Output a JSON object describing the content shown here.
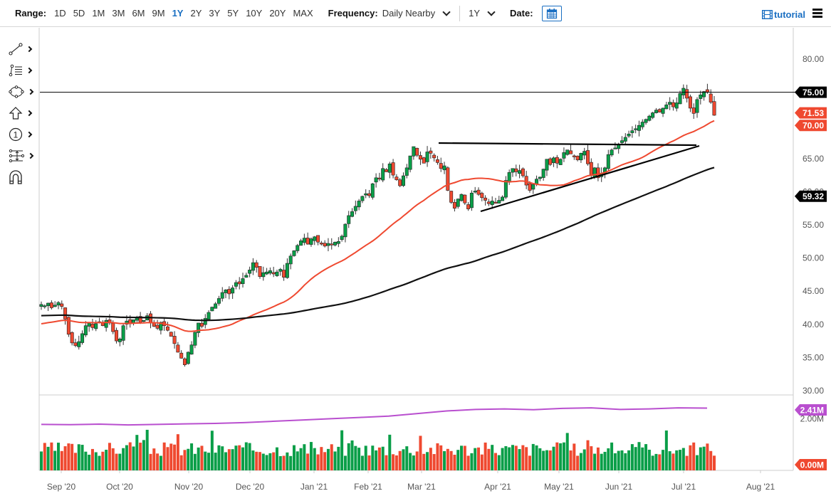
{
  "toolbar": {
    "range_label": "Range:",
    "ranges": [
      "1D",
      "5D",
      "1M",
      "3M",
      "6M",
      "9M",
      "1Y",
      "2Y",
      "3Y",
      "5Y",
      "10Y",
      "20Y",
      "MAX"
    ],
    "active_range": "1Y",
    "frequency_label": "Frequency:",
    "frequency_value": "Daily Nearby",
    "period_value": "1Y",
    "date_label": "Date:",
    "tutorial_label": "tutorial",
    "icons": {
      "calendar": "calendar-icon",
      "film": "film-icon",
      "menu": "hamburger-menu-icon"
    }
  },
  "drawing_tools": [
    {
      "name": "trendline-tool",
      "icon": "trendline-icon",
      "has_submenu": true
    },
    {
      "name": "fibonacci-tool",
      "icon": "fibonacci-icon",
      "has_submenu": true
    },
    {
      "name": "shapes-tool",
      "icon": "ellipse-shape-icon",
      "has_submenu": true
    },
    {
      "name": "arrow-tool",
      "icon": "arrow-up-icon",
      "has_submenu": true
    },
    {
      "name": "annotation-tool",
      "icon": "circled-one-icon",
      "has_submenu": true
    },
    {
      "name": "measure-tool",
      "icon": "measure-icon",
      "has_submenu": true
    },
    {
      "name": "magnet-tool",
      "icon": "magnet-icon",
      "has_submenu": false
    }
  ],
  "colors": {
    "up": "#0a9e48",
    "down": "#ef4930",
    "ma_short": "#ef4930",
    "ma_long": "#111111",
    "volume_ma": "#b94fcf",
    "axis_text": "#555555",
    "grid_border": "#cccccc",
    "accent": "#1a6fc2"
  },
  "chart_data": {
    "type": "candlestick",
    "title": "",
    "xlabel": "",
    "ylabel": "",
    "x_ticks": [
      "Sep '20",
      "Oct '20",
      "Nov '20",
      "Dec '20",
      "Jan '21",
      "Feb '21",
      "Mar '21",
      "Apr '21",
      "May '21",
      "Jun '21",
      "Jul '21",
      "Aug '21"
    ],
    "y_ticks": [
      "80.00",
      "75.00",
      "70.00",
      "65.00",
      "60.00",
      "55.00",
      "50.00",
      "45.00",
      "40.00",
      "35.00",
      "30.00"
    ],
    "ylim": [
      30,
      82
    ],
    "price_labels": [
      {
        "value": "75.00",
        "type": "horizontal-line",
        "color": "#000000"
      },
      {
        "value": "71.53",
        "type": "last-price",
        "color": "#ef4930"
      },
      {
        "value": "70.00",
        "type": "moving-average-50",
        "color": "#ef4930"
      },
      {
        "value": "59.32",
        "type": "moving-average-200",
        "color": "#000000"
      }
    ],
    "horizontal_line": 75.0,
    "annotations": [
      {
        "type": "resistance-line",
        "from": [
          "Mar '21",
          67.2
        ],
        "to": [
          "Jul '21",
          66.9
        ]
      },
      {
        "type": "rising-trendline",
        "from": [
          "Mar '21 late",
          56.9
        ],
        "to": [
          "Jul '21",
          66.6
        ]
      }
    ],
    "monthly_close_approx": {
      "x": [
        "Sep '20",
        "Oct '20",
        "Nov '20",
        "Dec '20",
        "Jan '21",
        "Feb '21",
        "Mar '21",
        "Apr '21",
        "May '21",
        "Jun '21",
        "Jul '21"
      ],
      "values": [
        40.5,
        40.0,
        35.5,
        44.5,
        52.0,
        59.0,
        66.0,
        58.5,
        64.5,
        71.0,
        71.53
      ]
    },
    "close_series": [
      43,
      42.8,
      43.2,
      42.5,
      42.9,
      43.3,
      42.7,
      40.8,
      38.5,
      37.2,
      36.8,
      37.4,
      38.6,
      39.8,
      40.2,
      39.5,
      40.1,
      40.4,
      39.8,
      40.6,
      40.2,
      38.9,
      37.5,
      37.8,
      39.8,
      40.5,
      40.1,
      40.7,
      41.1,
      40.3,
      40.6,
      41.3,
      40.2,
      39.7,
      39.4,
      40.3,
      39.8,
      39.1,
      38.2,
      37.1,
      35.8,
      34.9,
      33.9,
      35.8,
      36.9,
      38.8,
      40.2,
      39.7,
      40.9,
      41.8,
      42.6,
      43.1,
      43.9,
      44.8,
      45.2,
      44.6,
      45.5,
      46.3,
      46.1,
      46.9,
      47.4,
      48.2,
      49.3,
      48.6,
      47.2,
      47.8,
      47.9,
      48.1,
      47.6,
      47.9,
      48.3,
      47.1,
      49.2,
      50.3,
      51.1,
      51.9,
      52.6,
      53.0,
      52.1,
      52.9,
      53.2,
      52.4,
      52.1,
      51.8,
      52.2,
      52.0,
      52.4,
      52.5,
      53.3,
      55.1,
      56.4,
      57.0,
      57.8,
      58.6,
      59.3,
      59.7,
      59.4,
      61.2,
      62.1,
      62.0,
      63.5,
      63.0,
      64.2,
      62.5,
      61.8,
      60.9,
      62.4,
      63.6,
      65.4,
      66.8,
      65.5,
      64.9,
      64.3,
      66.0,
      65.8,
      65.1,
      64.4,
      63.5,
      63.9,
      60.2,
      58.4,
      57.5,
      58.9,
      59.6,
      58.3,
      57.4,
      59.8,
      60.1,
      59.6,
      59.1,
      58.7,
      58.2,
      58.6,
      58.3,
      58.7,
      59.2,
      61.7,
      62.9,
      63.5,
      63.0,
      63.2,
      62.4,
      61.0,
      60.2,
      61.1,
      61.9,
      62.2,
      63.4,
      64.9,
      64.1,
      65.1,
      64.3,
      64.9,
      65.9,
      66.3,
      65.7,
      65.3,
      64.8,
      65.8,
      66.1,
      64.2,
      62.5,
      63.6,
      62.1,
      62.8,
      63.6,
      65.6,
      66.3,
      66.6,
      67.1,
      67.7,
      68.2,
      68.7,
      69.2,
      69.5,
      70.0,
      70.5,
      70.9,
      71.4,
      71.9,
      72.3,
      72.0,
      72.6,
      73.1,
      73.5,
      72.8,
      73.4,
      74.8,
      75.6,
      74.1,
      72.6,
      71.8,
      73.9,
      74.6,
      75.1,
      75.0,
      73.5,
      71.53
    ],
    "ma50_start": 40.0,
    "ma50_end": 70.0,
    "ma200_start": 41.3,
    "ma200_end": 59.32,
    "volume": {
      "ylim": [
        0,
        2.7
      ],
      "y_ticks": [
        "2.00M"
      ],
      "labels": [
        {
          "value": "2.41M",
          "type": "volume-moving-average",
          "color": "#b94fcf"
        },
        {
          "value": "0.00M",
          "type": "last-volume-baseline",
          "color": "#ef4930"
        }
      ],
      "volume_ma_approx": [
        1.78,
        1.77,
        1.79,
        1.76,
        1.78,
        1.8,
        1.82,
        1.85,
        1.9,
        1.95,
        2.0,
        2.05,
        2.1,
        2.2,
        2.3,
        2.36,
        2.38,
        2.35,
        2.4,
        2.42,
        2.36,
        2.38,
        2.42,
        2.41
      ]
    }
  }
}
